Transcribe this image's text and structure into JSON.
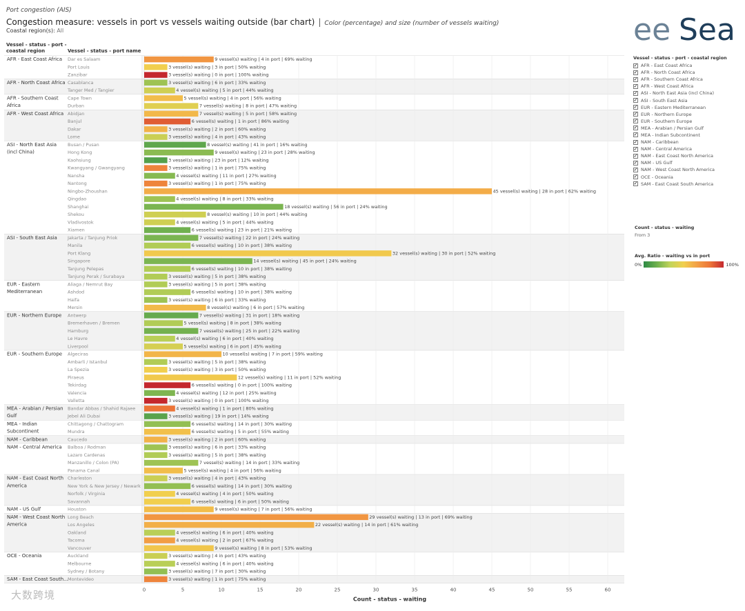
{
  "header": {
    "subtitle": "Port congestion (AIS)",
    "title": "Congestion measure: vessels in port vs vessels waiting outside (bar chart)",
    "separator": "|",
    "description": "Color (percentage) and size (number of vessels waiting)",
    "filter_label": "Coastal region(s):",
    "filter_value": "All"
  },
  "logo": {
    "text_left": "ee",
    "text_right": "Sea"
  },
  "columns": {
    "region_header_line1": "Vessel - status - port -",
    "region_header_line2": "coastal region",
    "port_header": "Vessel - status - port name"
  },
  "legend": {
    "title": "Vessel - status - port - coastal region",
    "checkmark": "✓",
    "items": [
      "AFR - East Coast Africa",
      "AFR - North Coast Africa",
      "AFR - Southern Coast Africa",
      "AFR - West Coast Africa",
      "ASI - North East Asia (incl China)",
      "ASI - South East Asia",
      "EUR - Eastern Mediterranean",
      "EUR - Northern Europe",
      "EUR - Southern Europe",
      "MEA - Arabian / Persian Gulf",
      "MEA - Indian Subcontinent",
      "NAM - Caribbean",
      "NAM - Central America",
      "NAM - East Coast North America",
      "NAM - US Gulf",
      "NAM - West Coast North America",
      "OCE - Oceania",
      "SAM - East Coast South America"
    ]
  },
  "size_legend": {
    "title": "Count - status - waiting",
    "value": "From 3"
  },
  "color_legend": {
    "title": "Avg. Ratio - waiting vs in port",
    "min": "0%",
    "max": "100%"
  },
  "watermark": "大数跨境",
  "chart_data": {
    "type": "bar",
    "orientation": "horizontal",
    "xlabel": "Count - status - waiting",
    "xlim": [
      0,
      60
    ],
    "xticks": [
      0,
      5,
      10,
      15,
      20,
      25,
      30,
      35,
      40,
      45,
      50,
      55,
      60
    ],
    "grid": true,
    "label_format": "{w} vessel(s) waiting  |  {p} in port  |  {r}% waiting",
    "regions": [
      {
        "line1": "AFR - East Coast Africa",
        "line2": "",
        "ports": [
          {
            "name": "Dar es Salaam",
            "waiting": 9,
            "in_port": 4,
            "ratio": 69
          },
          {
            "name": "Port Louis",
            "waiting": 3,
            "in_port": 3,
            "ratio": 50
          },
          {
            "name": "Zanzibar",
            "waiting": 3,
            "in_port": 0,
            "ratio": 100
          }
        ]
      },
      {
        "line1": "AFR - North Coast Africa",
        "line2": "",
        "ports": [
          {
            "name": "Casablanca",
            "waiting": 3,
            "in_port": 6,
            "ratio": 33
          },
          {
            "name": "Tanger Med / Tangier",
            "waiting": 4,
            "in_port": 5,
            "ratio": 44
          }
        ]
      },
      {
        "line1": "AFR - Southern Coast",
        "line2": "Africa",
        "ports": [
          {
            "name": "Cape Town",
            "waiting": 5,
            "in_port": 4,
            "ratio": 56
          },
          {
            "name": "Durban",
            "waiting": 7,
            "in_port": 8,
            "ratio": 47
          }
        ]
      },
      {
        "line1": "AFR - West Coast Africa",
        "line2": "",
        "ports": [
          {
            "name": "Abidjan",
            "waiting": 7,
            "in_port": 5,
            "ratio": 58
          },
          {
            "name": "Banjul",
            "waiting": 6,
            "in_port": 1,
            "ratio": 86
          },
          {
            "name": "Dakar",
            "waiting": 3,
            "in_port": 2,
            "ratio": 60
          },
          {
            "name": "Lome",
            "waiting": 3,
            "in_port": 4,
            "ratio": 43
          }
        ]
      },
      {
        "line1": "ASI - North East Asia",
        "line2": "(incl China)",
        "ports": [
          {
            "name": "Busan / Pusan",
            "waiting": 8,
            "in_port": 41,
            "ratio": 16
          },
          {
            "name": "Hong Kong",
            "waiting": 9,
            "in_port": 23,
            "ratio": 28
          },
          {
            "name": "Kaohsiung",
            "waiting": 3,
            "in_port": 23,
            "ratio": 12
          },
          {
            "name": "Kwangyang / Gwangyang",
            "waiting": 3,
            "in_port": 1,
            "ratio": 75
          },
          {
            "name": "Nansha",
            "waiting": 4,
            "in_port": 11,
            "ratio": 27
          },
          {
            "name": "Nantong",
            "waiting": 3,
            "in_port": 1,
            "ratio": 75
          },
          {
            "name": "Ningbo-Zhoushan",
            "waiting": 45,
            "in_port": 28,
            "ratio": 62
          },
          {
            "name": "Qingdao",
            "waiting": 4,
            "in_port": 8,
            "ratio": 33
          },
          {
            "name": "Shanghai",
            "waiting": 18,
            "in_port": 56,
            "ratio": 24
          },
          {
            "name": "Shekou",
            "waiting": 8,
            "in_port": 10,
            "ratio": 44
          },
          {
            "name": "Vladivostok",
            "waiting": 4,
            "in_port": 5,
            "ratio": 44
          },
          {
            "name": "Xiamen",
            "waiting": 6,
            "in_port": 23,
            "ratio": 21
          }
        ]
      },
      {
        "line1": "ASI - South East Asia",
        "line2": "",
        "ports": [
          {
            "name": "Jakarta / Tanjung Priok",
            "waiting": 7,
            "in_port": 22,
            "ratio": 24
          },
          {
            "name": "Manila",
            "waiting": 6,
            "in_port": 10,
            "ratio": 38
          },
          {
            "name": "Port Klang",
            "waiting": 32,
            "in_port": 30,
            "ratio": 52
          },
          {
            "name": "Singapore",
            "waiting": 14,
            "in_port": 45,
            "ratio": 24
          },
          {
            "name": "Tanjung Pelepas",
            "waiting": 6,
            "in_port": 10,
            "ratio": 38
          },
          {
            "name": "Tanjung Perak / Surabaya",
            "waiting": 3,
            "in_port": 5,
            "ratio": 38
          }
        ]
      },
      {
        "line1": "EUR - Eastern",
        "line2": "Mediterranean",
        "ports": [
          {
            "name": "Aliaga / Nemrut Bay",
            "waiting": 3,
            "in_port": 5,
            "ratio": 38
          },
          {
            "name": "Ashdod",
            "waiting": 6,
            "in_port": 10,
            "ratio": 38
          },
          {
            "name": "Haifa",
            "waiting": 3,
            "in_port": 6,
            "ratio": 33
          },
          {
            "name": "Mersin",
            "waiting": 8,
            "in_port": 6,
            "ratio": 57
          }
        ]
      },
      {
        "line1": "EUR - Northern Europe",
        "line2": "",
        "ports": [
          {
            "name": "Antwerp",
            "waiting": 7,
            "in_port": 31,
            "ratio": 18
          },
          {
            "name": "Bremerhaven / Bremen",
            "waiting": 5,
            "in_port": 8,
            "ratio": 38
          },
          {
            "name": "Hamburg",
            "waiting": 7,
            "in_port": 25,
            "ratio": 22
          },
          {
            "name": "Le Havre",
            "waiting": 4,
            "in_port": 6,
            "ratio": 40
          },
          {
            "name": "Liverpool",
            "waiting": 5,
            "in_port": 6,
            "ratio": 45
          }
        ]
      },
      {
        "line1": "EUR - Southern Europe",
        "line2": "",
        "ports": [
          {
            "name": "Algeciras",
            "waiting": 10,
            "in_port": 7,
            "ratio": 59
          },
          {
            "name": "Ambarli / Istanbul",
            "waiting": 3,
            "in_port": 5,
            "ratio": 38
          },
          {
            "name": "La Spezia",
            "waiting": 3,
            "in_port": 3,
            "ratio": 50
          },
          {
            "name": "Piraeus",
            "waiting": 12,
            "in_port": 11,
            "ratio": 52
          },
          {
            "name": "Tekirdag",
            "waiting": 6,
            "in_port": 0,
            "ratio": 100
          },
          {
            "name": "Valencia",
            "waiting": 4,
            "in_port": 12,
            "ratio": 25
          },
          {
            "name": "Valletta",
            "waiting": 3,
            "in_port": 0,
            "ratio": 100
          }
        ]
      },
      {
        "line1": "MEA - Arabian / Persian",
        "line2": "Gulf",
        "ports": [
          {
            "name": "Bandar Abbas / Shahid Rajaee",
            "waiting": 4,
            "in_port": 1,
            "ratio": 80
          },
          {
            "name": "Jebel Ali Dubai",
            "waiting": 3,
            "in_port": 19,
            "ratio": 14
          }
        ]
      },
      {
        "line1": "MEA - Indian",
        "line2": "Subcontinent",
        "ports": [
          {
            "name": "Chittagong / Chattogram",
            "waiting": 6,
            "in_port": 14,
            "ratio": 30
          },
          {
            "name": "Mundra",
            "waiting": 6,
            "in_port": 5,
            "ratio": 55
          }
        ]
      },
      {
        "line1": "NAM - Caribbean",
        "line2": "",
        "ports": [
          {
            "name": "Caucedo",
            "waiting": 3,
            "in_port": 2,
            "ratio": 60
          }
        ]
      },
      {
        "line1": "NAM - Central America",
        "line2": "",
        "ports": [
          {
            "name": "Balboa / Rodman",
            "waiting": 3,
            "in_port": 6,
            "ratio": 33
          },
          {
            "name": "Lazaro Cardenas",
            "waiting": 3,
            "in_port": 5,
            "ratio": 38
          },
          {
            "name": "Manzanillo / Colon (PA)",
            "waiting": 7,
            "in_port": 14,
            "ratio": 33
          },
          {
            "name": "Panama Canal",
            "waiting": 5,
            "in_port": 4,
            "ratio": 56
          }
        ]
      },
      {
        "line1": "NAM - East Coast North",
        "line2": "America",
        "ports": [
          {
            "name": "Charleston",
            "waiting": 3,
            "in_port": 4,
            "ratio": 43
          },
          {
            "name": "New York & New Jersey / Newark",
            "waiting": 6,
            "in_port": 14,
            "ratio": 30
          },
          {
            "name": "Norfolk / Virginia",
            "waiting": 4,
            "in_port": 4,
            "ratio": 50
          },
          {
            "name": "Savannah",
            "waiting": 6,
            "in_port": 6,
            "ratio": 50
          }
        ]
      },
      {
        "line1": "NAM - US Gulf",
        "line2": "",
        "ports": [
          {
            "name": "Houston",
            "waiting": 9,
            "in_port": 7,
            "ratio": 56
          }
        ]
      },
      {
        "line1": "NAM - West Coast North",
        "line2": "America",
        "ports": [
          {
            "name": "Long Beach",
            "waiting": 29,
            "in_port": 13,
            "ratio": 69
          },
          {
            "name": "Los Angeles",
            "waiting": 22,
            "in_port": 14,
            "ratio": 61
          },
          {
            "name": "Oakland",
            "waiting": 4,
            "in_port": 6,
            "ratio": 40
          },
          {
            "name": "Tacoma",
            "waiting": 4,
            "in_port": 2,
            "ratio": 67
          },
          {
            "name": "Vancouver",
            "waiting": 9,
            "in_port": 8,
            "ratio": 53
          }
        ]
      },
      {
        "line1": "OCE - Oceania",
        "line2": "",
        "ports": [
          {
            "name": "Auckland",
            "waiting": 3,
            "in_port": 4,
            "ratio": 43
          },
          {
            "name": "Melbourne",
            "waiting": 4,
            "in_port": 6,
            "ratio": 40
          },
          {
            "name": "Sydney / Botany",
            "waiting": 3,
            "in_port": 7,
            "ratio": 30
          }
        ]
      },
      {
        "line1": "SAM - East Coast South...",
        "line2": "",
        "ports": [
          {
            "name": "Montevideo",
            "waiting": 3,
            "in_port": 1,
            "ratio": 75
          }
        ]
      }
    ]
  }
}
